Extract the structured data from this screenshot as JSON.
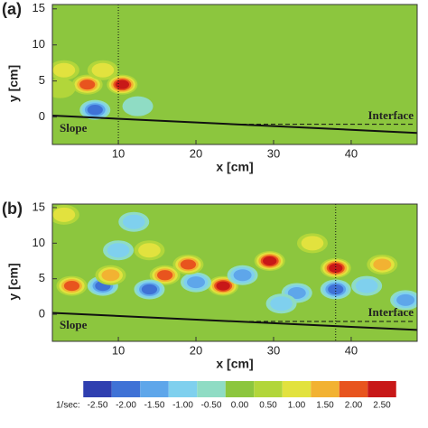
{
  "chart_data": [
    {
      "type": "contour",
      "panel_label": "(a)",
      "xlabel": "x [cm]",
      "ylabel": "y [cm]",
      "xlim": [
        1.5,
        48.5
      ],
      "ylim": [
        -3.8,
        15.6
      ],
      "xticks": [
        10,
        20,
        30,
        40
      ],
      "yticks": [
        0,
        5,
        10,
        15
      ],
      "background_color": "#8cc63e",
      "marker_x": 10,
      "slope": {
        "x": [
          1.5,
          48.5
        ],
        "y": [
          0.2,
          -2.2
        ]
      },
      "interface": {
        "x": [
          25,
          48
        ],
        "y": [
          -1,
          -1
        ]
      },
      "annotations": [
        "Slope",
        "Interface"
      ],
      "features": {
        "x": [
          6,
          10.5,
          8,
          7,
          3,
          12.5,
          2.5
        ],
        "y": [
          4.5,
          4.5,
          6.5,
          1,
          6.5,
          1.5,
          4
        ],
        "values": [
          2.0,
          2.5,
          1.0,
          -2.0,
          1.0,
          -0.5,
          0.5
        ]
      }
    },
    {
      "type": "contour",
      "panel_label": "(b)",
      "xlabel": "x [cm]",
      "ylabel": "y [cm]",
      "xlim": [
        1.5,
        48.5
      ],
      "ylim": [
        -3.8,
        15.5
      ],
      "xticks": [
        10,
        20,
        30,
        40
      ],
      "yticks": [
        0,
        5,
        10,
        15
      ],
      "background_color": "#8cc63e",
      "marker_x": 38,
      "slope": {
        "x": [
          1.5,
          48.5
        ],
        "y": [
          0.2,
          -2.2
        ]
      },
      "interface": {
        "x": [
          25,
          48
        ],
        "y": [
          -1,
          -1
        ]
      },
      "annotations": [
        "Slope",
        "Interface"
      ],
      "features": {
        "x": [
          38,
          38,
          23.5,
          29.5,
          16,
          14,
          20,
          26,
          10,
          8,
          9,
          4,
          19,
          33,
          44,
          47,
          12,
          3,
          14,
          31,
          42,
          35
        ],
        "y": [
          6.5,
          3.5,
          4,
          7.5,
          5.5,
          3.5,
          4.5,
          5.5,
          9,
          4,
          5.5,
          4,
          7,
          3,
          7,
          2,
          13,
          14,
          9,
          1.5,
          4,
          10
        ],
        "values": [
          2.5,
          -2.0,
          2.5,
          2.5,
          2.0,
          -2.0,
          -1.5,
          -1.5,
          -1.0,
          -2.0,
          1.5,
          2.0,
          2.0,
          -1.5,
          1.5,
          -1.5,
          -1.0,
          1.0,
          1.0,
          -1.0,
          -1.0,
          1.0
        ]
      }
    },
    {
      "type": "colorbar",
      "label": "1/sec:",
      "ticks": [
        {
          "value": -2.5,
          "label": "-2.50"
        },
        {
          "value": -2.0,
          "label": "-2.00"
        },
        {
          "value": -1.5,
          "label": "-1.50"
        },
        {
          "value": -1.0,
          "label": "-1.00"
        },
        {
          "value": -0.5,
          "label": "-0.50"
        },
        {
          "value": 0,
          "label": "0.00"
        },
        {
          "value": 0.5,
          "label": "0.50"
        },
        {
          "value": 1.0,
          "label": "1.00"
        },
        {
          "value": 1.5,
          "label": "1.50"
        },
        {
          "value": 2.0,
          "label": "2.00"
        },
        {
          "value": 2.5,
          "label": "2.50"
        }
      ],
      "colors": [
        "#2f3fb0",
        "#3f72d6",
        "#5ea6ea",
        "#7fd0ee",
        "#8fdcc4",
        "#8cc63e",
        "#b2d63a",
        "#e2e23e",
        "#f2b232",
        "#e8541e",
        "#c81818"
      ]
    }
  ]
}
